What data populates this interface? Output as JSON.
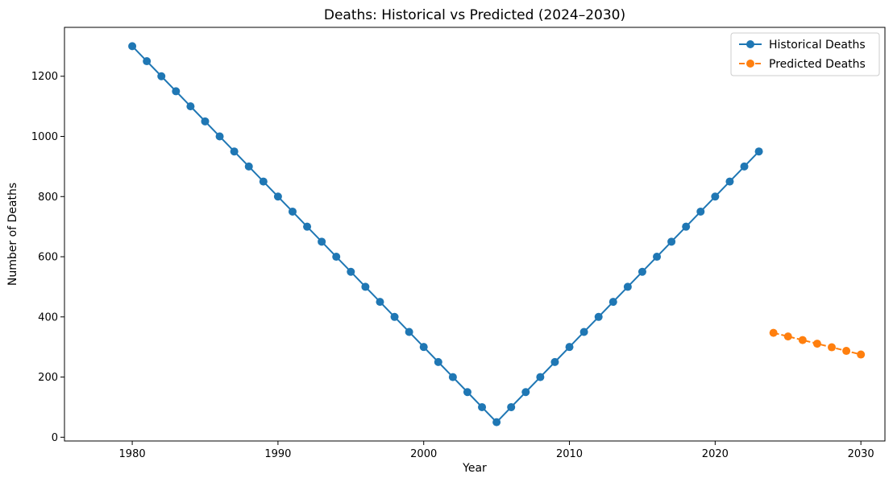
{
  "chart_data": {
    "type": "line",
    "title": "Deaths: Historical vs Predicted (2024–2030)",
    "xlabel": "Year",
    "ylabel": "Number of Deaths",
    "xlim": [
      1975.35,
      2031.65
    ],
    "ylim": [
      -12.5,
      1362.5
    ],
    "xticks": [
      1980,
      1990,
      2000,
      2010,
      2020,
      2030
    ],
    "yticks": [
      0,
      200,
      400,
      600,
      800,
      1000,
      1200
    ],
    "grid": false,
    "legend_position": "top-right",
    "series": [
      {
        "name": "Historical Deaths",
        "color": "#1f77b4",
        "linestyle": "solid",
        "marker": "circle",
        "x": [
          1980,
          1981,
          1982,
          1983,
          1984,
          1985,
          1986,
          1987,
          1988,
          1989,
          1990,
          1991,
          1992,
          1993,
          1994,
          1995,
          1996,
          1997,
          1998,
          1999,
          2000,
          2001,
          2002,
          2003,
          2004,
          2005,
          2006,
          2007,
          2008,
          2009,
          2010,
          2011,
          2012,
          2013,
          2014,
          2015,
          2016,
          2017,
          2018,
          2019,
          2020,
          2021,
          2022,
          2023
        ],
        "y": [
          1300,
          1250,
          1200,
          1150,
          1100,
          1050,
          1000,
          950,
          900,
          850,
          800,
          750,
          700,
          650,
          600,
          550,
          500,
          450,
          400,
          350,
          300,
          250,
          200,
          150,
          100,
          50,
          100,
          150,
          200,
          250,
          300,
          350,
          400,
          450,
          500,
          550,
          600,
          650,
          700,
          750,
          800,
          850,
          900,
          950
        ]
      },
      {
        "name": "Predicted Deaths",
        "color": "#ff7f0e",
        "linestyle": "dashed",
        "marker": "circle",
        "x": [
          2024,
          2025,
          2026,
          2027,
          2028,
          2029,
          2030
        ],
        "y": [
          347,
          335,
          323,
          311,
          299,
          287,
          275
        ]
      }
    ]
  }
}
